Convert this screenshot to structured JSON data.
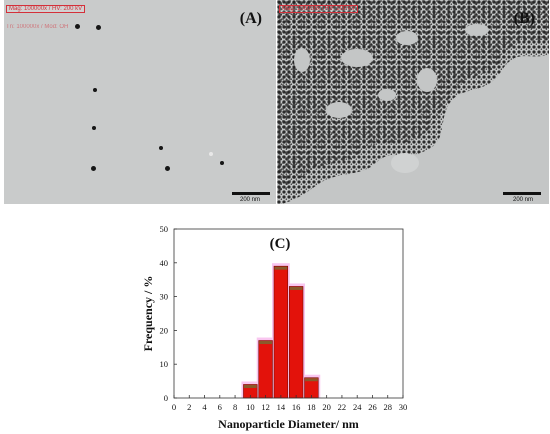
{
  "panels": {
    "a": {
      "label": "(A)",
      "info_line1": "Mag: 100000x / HV: 200 kV",
      "info_line2": "Tn: 100000x / Mod: OH",
      "scale": "200 nm"
    },
    "b": {
      "label": "(B)",
      "info_line1": "Mag: 100000x / HV: 200 kV",
      "scale": "200 nm"
    }
  },
  "chart_data": {
    "type": "bar",
    "panel_label": "(C)",
    "xlabel": "Nanoparticle Diameter/ nm",
    "ylabel": "Frequency / %",
    "x": [
      10,
      12,
      14,
      16,
      18
    ],
    "values": [
      4,
      17,
      39,
      33,
      6
    ],
    "bar_width": 1.8,
    "xlim": [
      0,
      30
    ],
    "ylim": [
      0,
      50
    ],
    "xticks": [
      0,
      2,
      4,
      6,
      8,
      10,
      12,
      14,
      16,
      18,
      20,
      22,
      24,
      26,
      28,
      30
    ],
    "yticks": [
      0,
      10,
      20,
      30,
      40,
      50
    ],
    "colors": {
      "bar": "#e3120b",
      "bar_top": "#8a5a2b",
      "halo": "#f9c6f0"
    }
  }
}
